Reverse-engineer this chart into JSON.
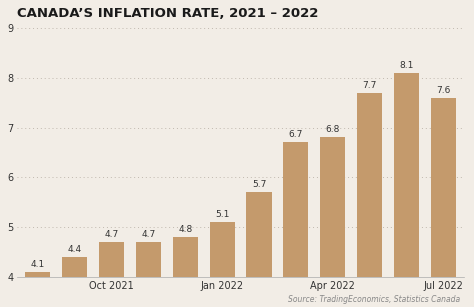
{
  "title": "CANADA’S INFLATION RATE, 2021 – 2022",
  "x_tick_labels": [
    "Oct 2021",
    "Jan 2022",
    "Apr 2022",
    "Jul 2022"
  ],
  "x_tick_positions": [
    2,
    5,
    8,
    11
  ],
  "values": [
    4.1,
    4.4,
    4.7,
    4.7,
    4.8,
    5.1,
    5.7,
    6.7,
    6.8,
    7.7,
    8.1,
    7.6
  ],
  "bar_color": "#C49A6C",
  "background_color": "#F2EDE6",
  "title_color": "#1a1a1a",
  "label_color": "#333333",
  "source_text": "Source: TradingEconomics, Statistics Canada",
  "ylim_min": 4,
  "ylim_max": 9,
  "yticks": [
    4,
    5,
    6,
    7,
    8,
    9
  ],
  "title_fontsize": 9.5,
  "value_label_fontsize": 6.5,
  "axis_label_fontsize": 7,
  "source_fontsize": 5.5,
  "grid_color": "#c0b8ae",
  "bar_width": 0.68
}
